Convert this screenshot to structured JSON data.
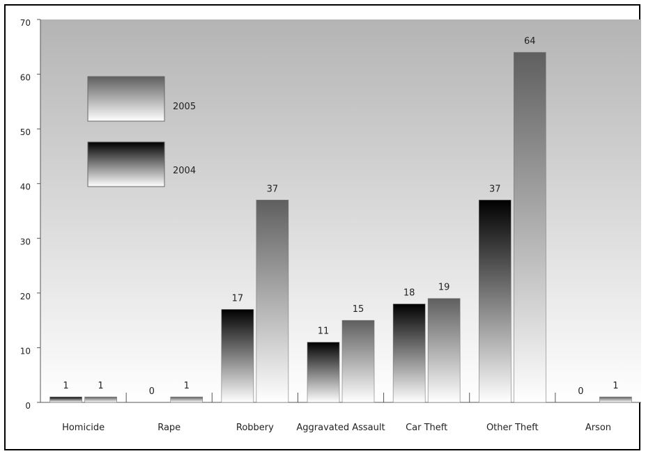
{
  "chart_data": {
    "type": "bar",
    "categories": [
      "Homicide",
      "Rape",
      "Robbery",
      "Aggravated Assault",
      "Car Theft",
      "Other Theft",
      "Arson"
    ],
    "series": [
      {
        "name": "2004",
        "values": [
          1,
          0,
          17,
          11,
          18,
          37,
          0
        ]
      },
      {
        "name": "2005",
        "values": [
          1,
          1,
          37,
          15,
          19,
          64,
          1
        ]
      }
    ],
    "ylim": [
      0,
      70
    ],
    "yticks": [
      0,
      10,
      20,
      30,
      40,
      50,
      60,
      70
    ],
    "grid": false,
    "legend_position": "top-left",
    "colors": {
      "plot_bg_top": "#b4b4b4",
      "plot_bg_bottom": "#ffffff",
      "series_2004_top": "#000000",
      "series_2004_bottom": "#ffffff",
      "series_2005_top": "#5f5f5f",
      "series_2005_bottom": "#ffffff"
    }
  }
}
